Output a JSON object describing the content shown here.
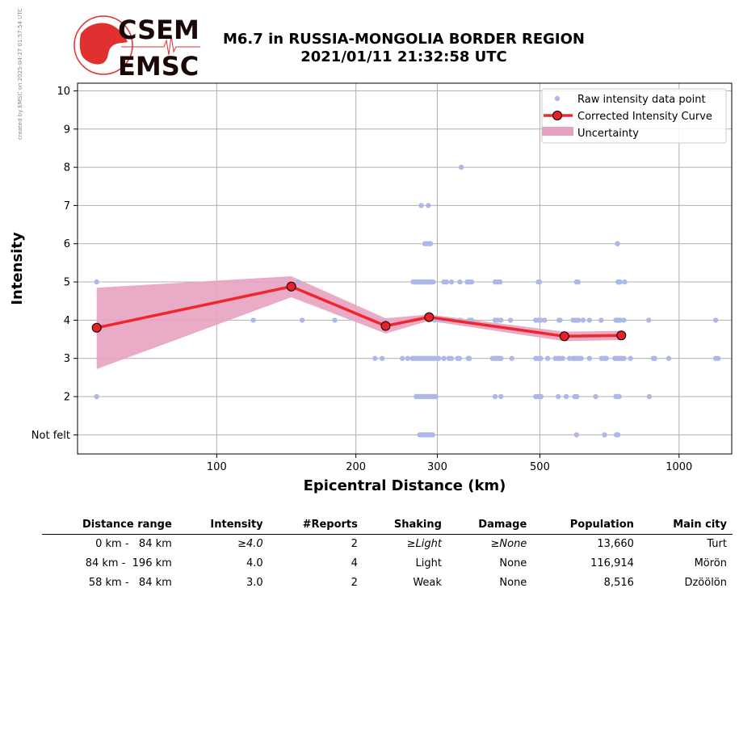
{
  "credit": "created by EMSC on 2025-04-27 01:57:54 UTC",
  "logo": {
    "line1": "CSEM",
    "line2": "EMSC",
    "color": "#e03030"
  },
  "title_line1": "M6.7 in RUSSIA-MONGOLIA BORDER REGION",
  "title_line2": "2021/01/11 21:32:58 UTC",
  "chart_data": {
    "type": "scatter",
    "xlabel": "Epicentral Distance (km)",
    "ylabel": "Intensity",
    "x_scale": "log",
    "xlim": [
      50,
      1300
    ],
    "ylim": [
      0.5,
      10.2
    ],
    "x_ticks": [
      100,
      200,
      300,
      500,
      1000
    ],
    "y_ticks": [
      1,
      2,
      3,
      4,
      5,
      6,
      7,
      8,
      9,
      10
    ],
    "y_tick_labels": [
      "Not felt",
      "2",
      "3",
      "4",
      "5",
      "6",
      "7",
      "8",
      "9",
      "10"
    ],
    "grid": true,
    "legend_position": "top-right",
    "colors": {
      "raw": "#aeb8e8",
      "curve": "#f0262c",
      "marker": "#e8202a",
      "band": "#e8a2c0"
    },
    "legend": [
      "Raw intensity data point",
      "Corrected Intensity Curve",
      "Uncertainty"
    ],
    "raw_points": [
      [
        55,
        5
      ],
      [
        55,
        2
      ],
      [
        120,
        4
      ],
      [
        150,
        5
      ],
      [
        153,
        4
      ],
      [
        180,
        4
      ],
      [
        220,
        3
      ],
      [
        228,
        3
      ],
      [
        252,
        3
      ],
      [
        259,
        3
      ],
      [
        265,
        3
      ],
      [
        267,
        3
      ],
      [
        270,
        3
      ],
      [
        273,
        3
      ],
      [
        276,
        3
      ],
      [
        279,
        3
      ],
      [
        282,
        3
      ],
      [
        285,
        3
      ],
      [
        288,
        3
      ],
      [
        291,
        3
      ],
      [
        294,
        3
      ],
      [
        297,
        3
      ],
      [
        302,
        3
      ],
      [
        310,
        3
      ],
      [
        318,
        3
      ],
      [
        322,
        3
      ],
      [
        332,
        3
      ],
      [
        335,
        3
      ],
      [
        350,
        3
      ],
      [
        352,
        3
      ],
      [
        266,
        5
      ],
      [
        268,
        5
      ],
      [
        270,
        5
      ],
      [
        272,
        5
      ],
      [
        274,
        5
      ],
      [
        276,
        5
      ],
      [
        278,
        5
      ],
      [
        280,
        5
      ],
      [
        282,
        5
      ],
      [
        284,
        5
      ],
      [
        286,
        5
      ],
      [
        288,
        5
      ],
      [
        290,
        5
      ],
      [
        292,
        5
      ],
      [
        294,
        5
      ],
      [
        310,
        5
      ],
      [
        314,
        5
      ],
      [
        322,
        5
      ],
      [
        336,
        5
      ],
      [
        348,
        5
      ],
      [
        352,
        5
      ],
      [
        356,
        5
      ],
      [
        400,
        5
      ],
      [
        405,
        5
      ],
      [
        410,
        5
      ],
      [
        496,
        5
      ],
      [
        499,
        5
      ],
      [
        600,
        5
      ],
      [
        605,
        5
      ],
      [
        738,
        5
      ],
      [
        741,
        5
      ],
      [
        745,
        5
      ],
      [
        763,
        5
      ],
      [
        270,
        2
      ],
      [
        272,
        2
      ],
      [
        274,
        2
      ],
      [
        276,
        2
      ],
      [
        278,
        2
      ],
      [
        280,
        2
      ],
      [
        282,
        2
      ],
      [
        284,
        2
      ],
      [
        286,
        2
      ],
      [
        288,
        2
      ],
      [
        290,
        2
      ],
      [
        292,
        2
      ],
      [
        294,
        2
      ],
      [
        296,
        2
      ],
      [
        298,
        2
      ],
      [
        275,
        1
      ],
      [
        278,
        1
      ],
      [
        281,
        1
      ],
      [
        284,
        1
      ],
      [
        287,
        1
      ],
      [
        290,
        1
      ],
      [
        293,
        1
      ],
      [
        282,
        6
      ],
      [
        285,
        6
      ],
      [
        288,
        6
      ],
      [
        290,
        6
      ],
      [
        277,
        7
      ],
      [
        287,
        7
      ],
      [
        338,
        8
      ],
      [
        296,
        4
      ],
      [
        305,
        4
      ],
      [
        312,
        4
      ],
      [
        324,
        4
      ],
      [
        336,
        4
      ],
      [
        352,
        4
      ],
      [
        356,
        4
      ],
      [
        400,
        4
      ],
      [
        405,
        4
      ],
      [
        412,
        4
      ],
      [
        432,
        4
      ],
      [
        490,
        4
      ],
      [
        496,
        4
      ],
      [
        502,
        4
      ],
      [
        512,
        4
      ],
      [
        550,
        4
      ],
      [
        553,
        4
      ],
      [
        590,
        4
      ],
      [
        595,
        4
      ],
      [
        600,
        4
      ],
      [
        606,
        4
      ],
      [
        620,
        4
      ],
      [
        640,
        4
      ],
      [
        678,
        4
      ],
      [
        730,
        4
      ],
      [
        735,
        4
      ],
      [
        740,
        4
      ],
      [
        746,
        4
      ],
      [
        760,
        4
      ],
      [
        860,
        4
      ],
      [
        1200,
        4
      ],
      [
        395,
        3
      ],
      [
        400,
        3
      ],
      [
        403,
        3
      ],
      [
        407,
        3
      ],
      [
        412,
        3
      ],
      [
        435,
        3
      ],
      [
        490,
        3
      ],
      [
        496,
        3
      ],
      [
        502,
        3
      ],
      [
        520,
        3
      ],
      [
        540,
        3
      ],
      [
        548,
        3
      ],
      [
        553,
        3
      ],
      [
        560,
        3
      ],
      [
        580,
        3
      ],
      [
        590,
        3
      ],
      [
        595,
        3
      ],
      [
        601,
        3
      ],
      [
        607,
        3
      ],
      [
        614,
        3
      ],
      [
        640,
        3
      ],
      [
        680,
        3
      ],
      [
        690,
        3
      ],
      [
        696,
        3
      ],
      [
        726,
        3
      ],
      [
        734,
        3
      ],
      [
        740,
        3
      ],
      [
        746,
        3
      ],
      [
        751,
        3
      ],
      [
        760,
        3
      ],
      [
        785,
        3
      ],
      [
        880,
        3
      ],
      [
        886,
        3
      ],
      [
        950,
        3
      ],
      [
        1200,
        3
      ],
      [
        1215,
        3
      ],
      [
        400,
        2
      ],
      [
        412,
        2
      ],
      [
        490,
        2
      ],
      [
        496,
        2
      ],
      [
        503,
        2
      ],
      [
        548,
        2
      ],
      [
        570,
        2
      ],
      [
        595,
        2
      ],
      [
        601,
        2
      ],
      [
        660,
        2
      ],
      [
        730,
        2
      ],
      [
        736,
        2
      ],
      [
        742,
        2
      ],
      [
        862,
        2
      ],
      [
        600,
        1
      ],
      [
        690,
        1
      ],
      [
        732,
        1
      ],
      [
        738,
        1
      ],
      [
        736,
        6
      ]
    ],
    "curve": {
      "x": [
        55,
        145,
        232,
        288,
        565,
        750
      ],
      "y": [
        3.8,
        4.88,
        3.85,
        4.08,
        3.58,
        3.6
      ]
    },
    "uncertainty": {
      "x": [
        55,
        145,
        232,
        288,
        565,
        750
      ],
      "upper": [
        4.85,
        5.15,
        4.05,
        4.15,
        3.7,
        3.72
      ],
      "lower": [
        2.72,
        4.6,
        3.65,
        3.98,
        3.45,
        3.48
      ]
    }
  },
  "table": {
    "headers": [
      "Distance range",
      "Intensity",
      "#Reports",
      "Shaking",
      "Damage",
      "Population",
      "Main city"
    ],
    "rows": [
      {
        "range": "0 km -   84 km",
        "intensity": "≥4.0",
        "reports": "2",
        "shaking": "≥Light",
        "damage": "≥None",
        "population": "13,660",
        "city": "Turt"
      },
      {
        "range": "84 km -  196 km",
        "intensity": "4.0",
        "reports": "4",
        "shaking": "Light",
        "damage": "None",
        "population": "116,914",
        "city": "Mörön"
      },
      {
        "range": "58 km -   84 km",
        "intensity": "3.0",
        "reports": "2",
        "shaking": "Weak",
        "damage": "None",
        "population": "8,516",
        "city": "Dzöölön"
      }
    ]
  }
}
